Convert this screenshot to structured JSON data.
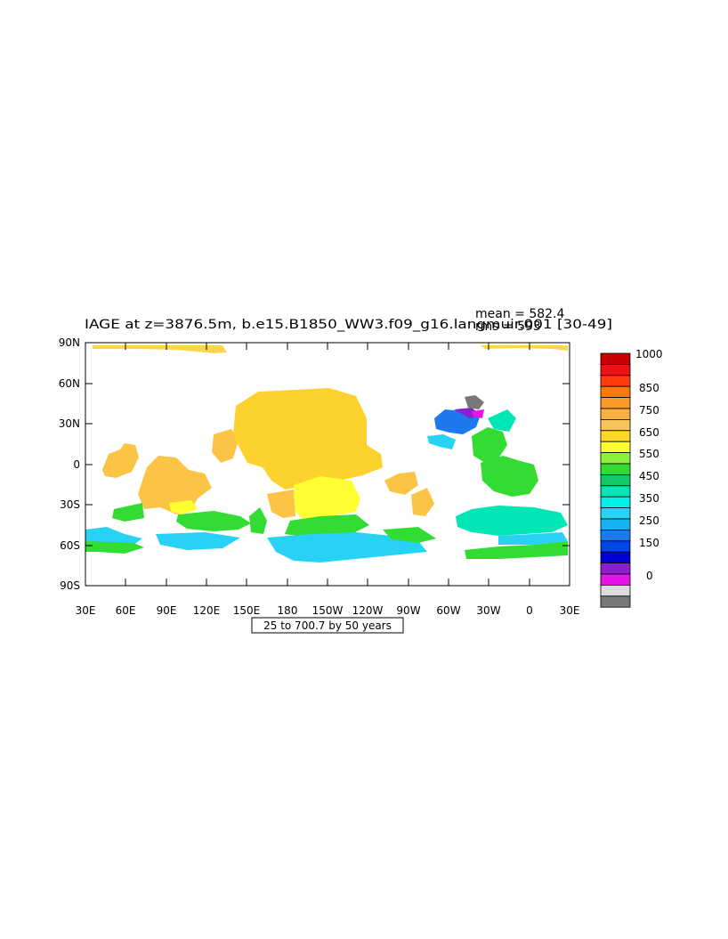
{
  "title": "IAGE at z=3876.5m, b.e15.B1850_WW3.f09_g16.langmuir.001 [30-49]",
  "stats": {
    "mean": "mean = 582.4",
    "rms": "rms = 593"
  },
  "contour_info": "25 to 700.7 by 50 years",
  "x_ticks": [
    "30E",
    "60E",
    "90E",
    "120E",
    "150E",
    "180",
    "150W",
    "120W",
    "90W",
    "60W",
    "30W",
    "0",
    "30E"
  ],
  "y_ticks": [
    "90N",
    "60N",
    "30N",
    "0",
    "30S",
    "60S",
    "90S"
  ],
  "colorbar": {
    "labels": [
      "1000",
      "850",
      "750",
      "650",
      "550",
      "450",
      "350",
      "250",
      "150",
      "0"
    ],
    "colors": [
      "#c80000",
      "#e61414",
      "#ff3c0a",
      "#ff780a",
      "#f79a28",
      "#fbb040",
      "#f7c45a",
      "#ffd72a",
      "#ffff32",
      "#8cf03c",
      "#32dc32",
      "#14c864",
      "#00e6b4",
      "#00f0e6",
      "#28d2f5",
      "#14b4f0",
      "#1e78f0",
      "#0046e6",
      "#0000d2",
      "#8c1ecd",
      "#e614e6",
      "#dcdcdc",
      "#787878"
    ]
  },
  "map_colors": {
    "land": "#ffffff",
    "north_pacific": "#fed22e",
    "atlantic_deep": "#32dc32",
    "southern_ocean": "#28d2f5"
  }
}
